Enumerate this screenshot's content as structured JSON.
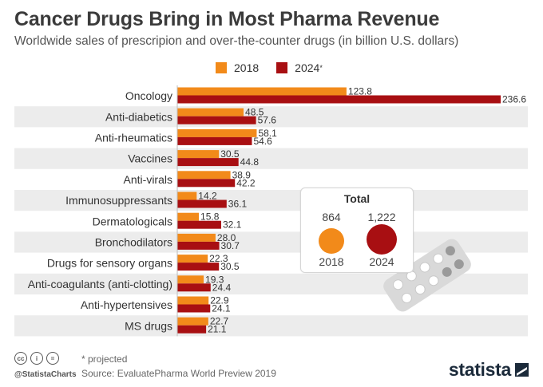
{
  "title": "Cancer Drugs Bring in Most Pharma Revenue",
  "subtitle": "Worldwide sales of prescripion and over-the-counter drugs (in billion U.S. dollars)",
  "legend": [
    {
      "label": "2018",
      "color": "#f28a1a",
      "sup": ""
    },
    {
      "label": "2024",
      "color": "#a80f12",
      "sup": "*"
    }
  ],
  "total_box": {
    "title": "Total",
    "items": [
      {
        "value": "864",
        "year": "2018",
        "color": "#f28a1a"
      },
      {
        "value": "1,222",
        "year": "2024",
        "color": "#a80f12"
      }
    ]
  },
  "chart_data": {
    "type": "bar",
    "orientation": "horizontal",
    "categories": [
      "Oncology",
      "Anti-diabetics",
      "Anti-rheumatics",
      "Vaccines",
      "Anti-virals",
      "Immunosuppressants",
      "Dermatologicals",
      "Bronchodilators",
      "Drugs for sensory organs",
      "Anti-coagulants (anti-clotting)",
      "Anti-hypertensives",
      "MS drugs"
    ],
    "series": [
      {
        "name": "2018",
        "color": "#f28a1a",
        "values": [
          123.8,
          48.5,
          58.1,
          30.5,
          38.9,
          14.2,
          15.8,
          28.0,
          22.3,
          19.3,
          22.9,
          22.7
        ]
      },
      {
        "name": "2024*",
        "color": "#a80f12",
        "values": [
          236.6,
          57.6,
          54.6,
          44.8,
          42.2,
          36.1,
          32.1,
          30.7,
          30.5,
          24.4,
          24.1,
          21.1
        ]
      }
    ],
    "value_labels": [
      [
        "123.8",
        "48.5",
        "58.1",
        "30.5",
        "38.9",
        "14.2",
        "15.8",
        "28.0",
        "22.3",
        "19.3",
        "22.9",
        "22.7"
      ],
      [
        "236.6",
        "57.6",
        "54.6",
        "44.8",
        "42.2",
        "36.1",
        "32.1",
        "30.7",
        "30.5",
        "24.4",
        "24.1",
        "21.1"
      ]
    ],
    "xlim": [
      0,
      236.6
    ],
    "grid": false,
    "legend_position": "top-center"
  },
  "footer": {
    "note": "* projected",
    "source": "Source: EvaluatePharma World Preview 2019",
    "handle": "@StatistaCharts",
    "logo": "statista",
    "cc_icons": [
      "cc-icon",
      "by-icon",
      "nd-icon"
    ]
  }
}
